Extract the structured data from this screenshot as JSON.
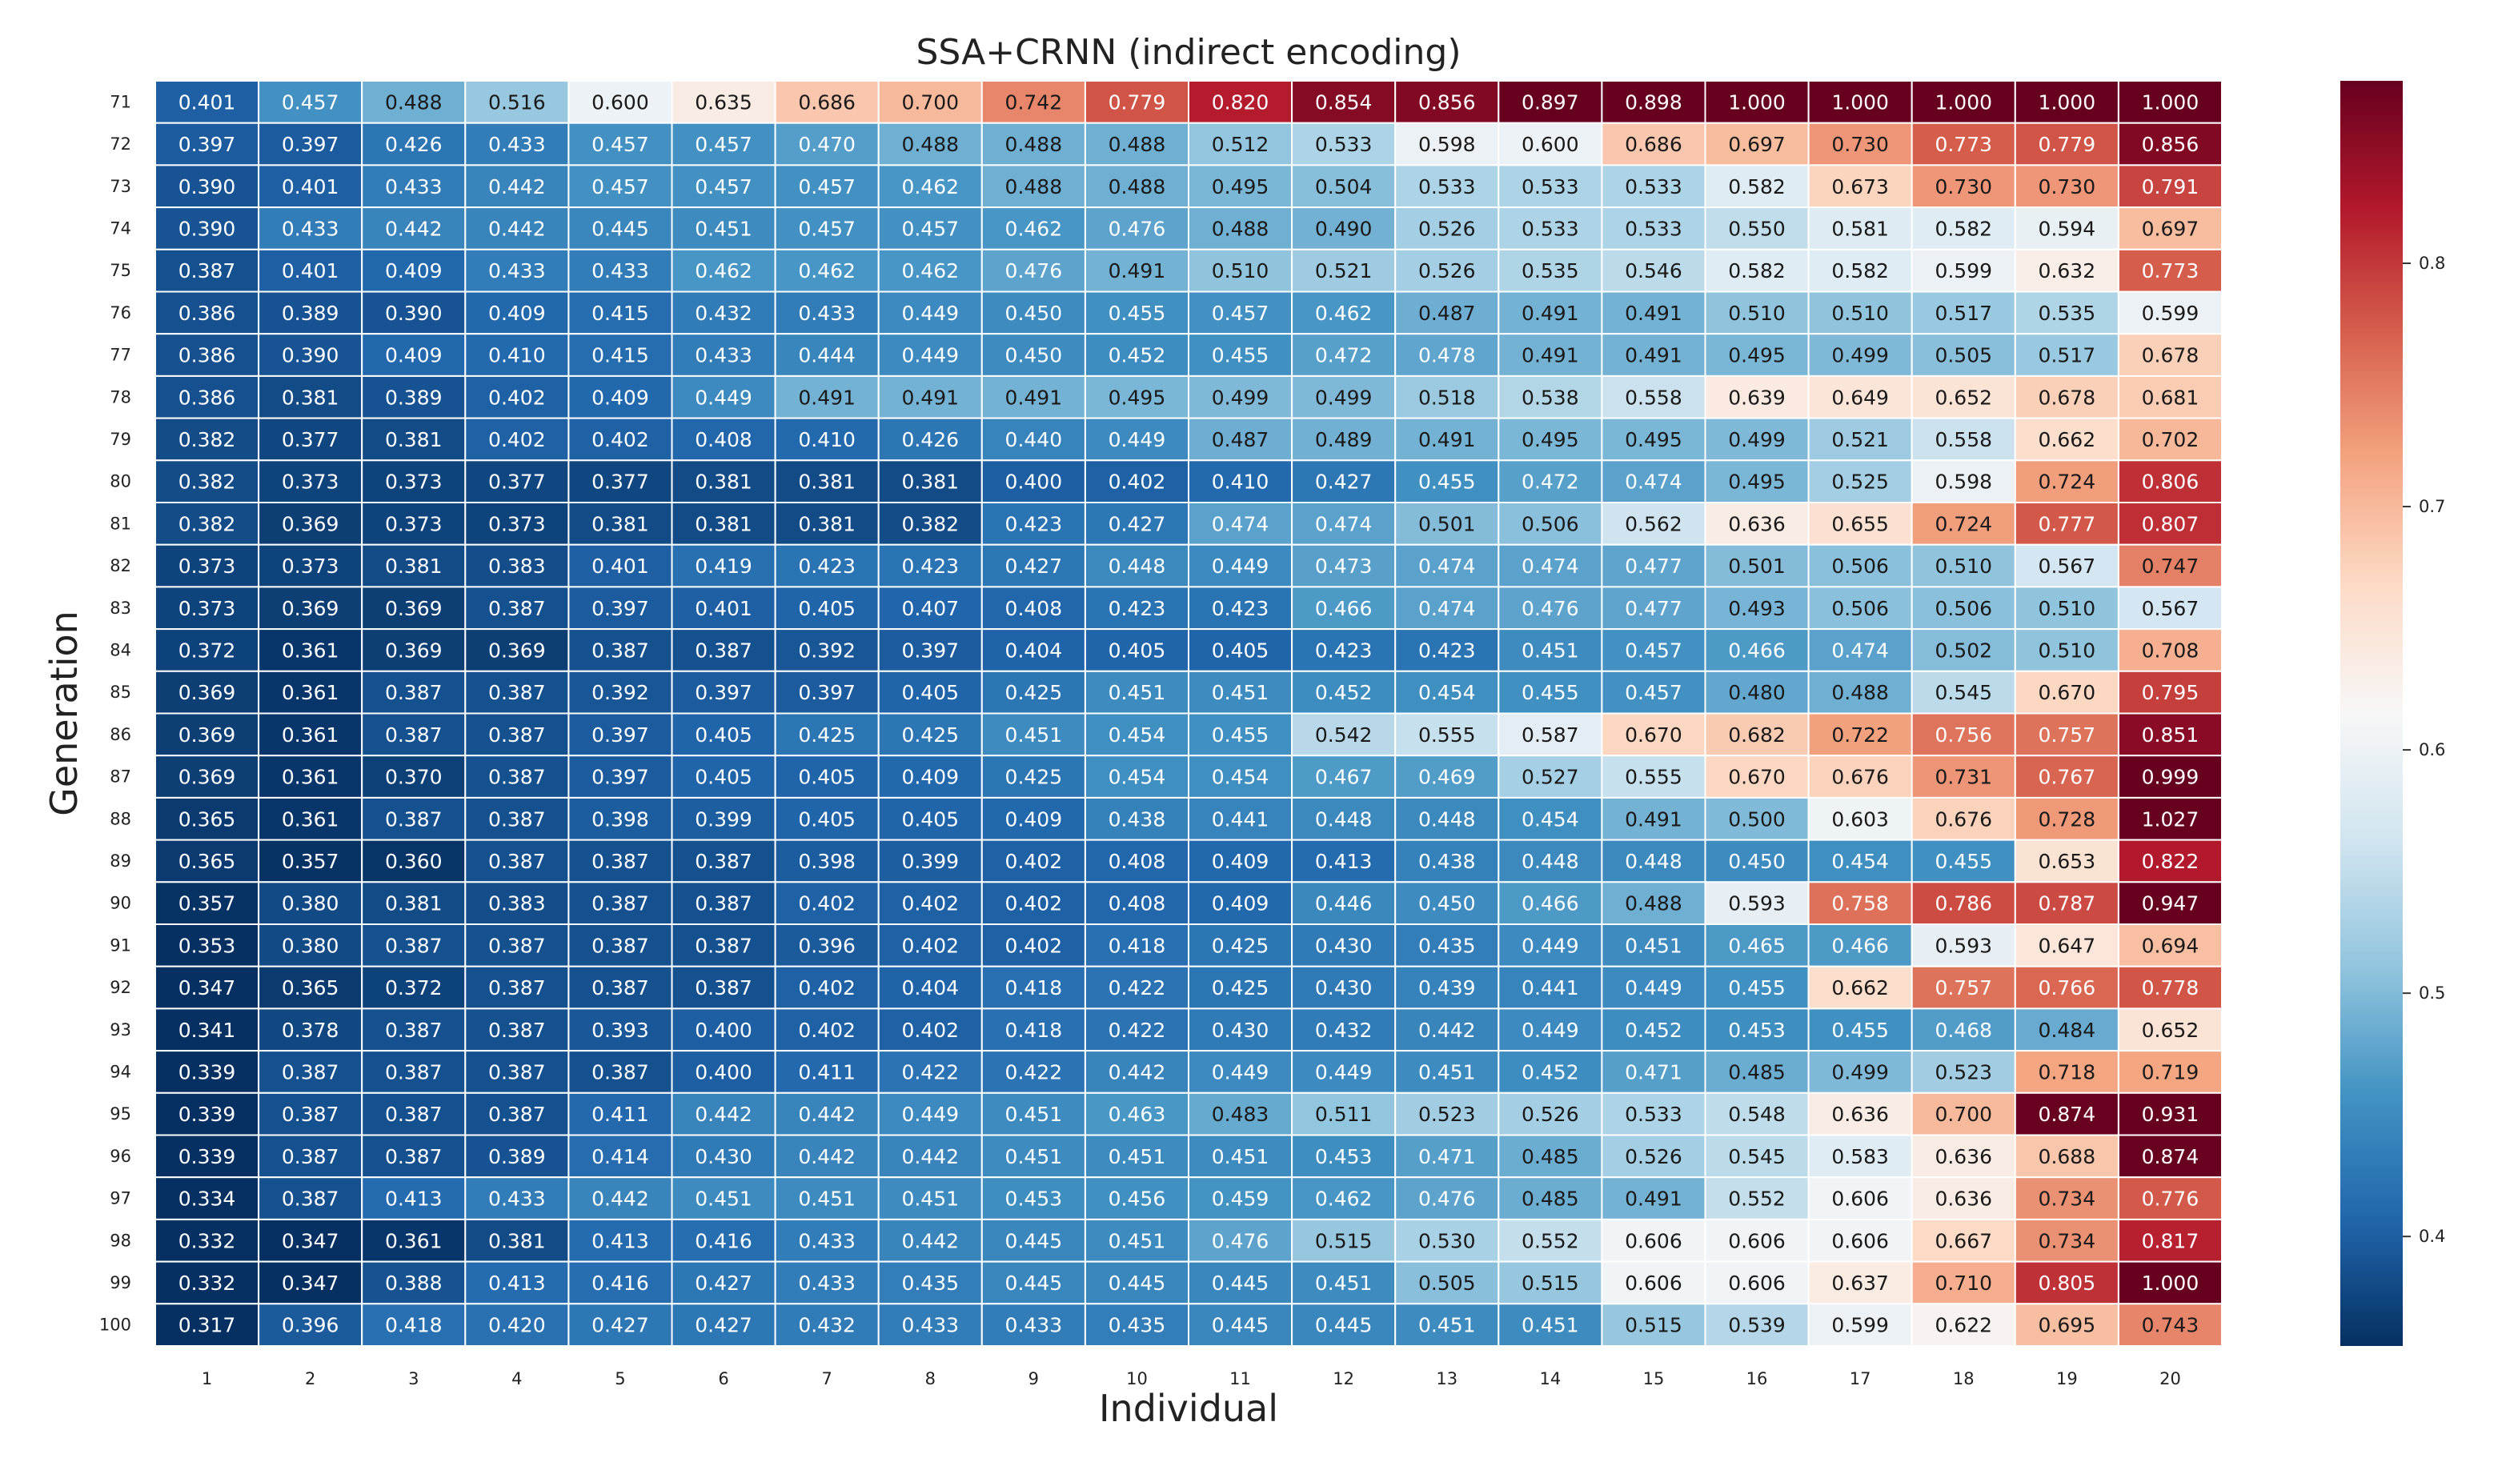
{
  "chart_data": {
    "type": "heatmap",
    "title": "SSA+CRNN (indirect encoding)",
    "xlabel": "Individual",
    "ylabel": "Generation",
    "x_categories": [
      "1",
      "2",
      "3",
      "4",
      "5",
      "6",
      "7",
      "8",
      "9",
      "10",
      "11",
      "12",
      "13",
      "14",
      "15",
      "16",
      "17",
      "18",
      "19",
      "20"
    ],
    "y_categories": [
      "71",
      "72",
      "73",
      "74",
      "75",
      "76",
      "77",
      "78",
      "79",
      "80",
      "81",
      "82",
      "83",
      "84",
      "85",
      "86",
      "87",
      "88",
      "89",
      "90",
      "91",
      "92",
      "93",
      "94",
      "95",
      "96",
      "97",
      "98",
      "99",
      "100"
    ],
    "value_labels": [
      [
        "0.401",
        "0.457",
        "0.488",
        "0.516",
        "0.600",
        "0.635",
        "0.686",
        "0.700",
        "0.742",
        "0.779",
        "0.820",
        "0.854",
        "0.856",
        "0.897",
        "0.898",
        "1.000",
        "1.000",
        "1.000",
        "1.000",
        "1.000"
      ],
      [
        "0.397",
        "0.397",
        "0.426",
        "0.433",
        "0.457",
        "0.457",
        "0.470",
        "0.488",
        "0.488",
        "0.488",
        "0.512",
        "0.533",
        "0.598",
        "0.600",
        "0.686",
        "0.697",
        "0.730",
        "0.773",
        "0.779",
        "0.856"
      ],
      [
        "0.390",
        "0.401",
        "0.433",
        "0.442",
        "0.457",
        "0.457",
        "0.457",
        "0.462",
        "0.488",
        "0.488",
        "0.495",
        "0.504",
        "0.533",
        "0.533",
        "0.533",
        "0.582",
        "0.673",
        "0.730",
        "0.730",
        "0.791"
      ],
      [
        "0.390",
        "0.433",
        "0.442",
        "0.442",
        "0.445",
        "0.451",
        "0.457",
        "0.457",
        "0.462",
        "0.476",
        "0.488",
        "0.490",
        "0.526",
        "0.533",
        "0.533",
        "0.550",
        "0.581",
        "0.582",
        "0.594",
        "0.697"
      ],
      [
        "0.387",
        "0.401",
        "0.409",
        "0.433",
        "0.433",
        "0.462",
        "0.462",
        "0.462",
        "0.476",
        "0.491",
        "0.510",
        "0.521",
        "0.526",
        "0.535",
        "0.546",
        "0.582",
        "0.582",
        "0.599",
        "0.632",
        "0.773"
      ],
      [
        "0.386",
        "0.389",
        "0.390",
        "0.409",
        "0.415",
        "0.432",
        "0.433",
        "0.449",
        "0.450",
        "0.455",
        "0.457",
        "0.462",
        "0.487",
        "0.491",
        "0.491",
        "0.510",
        "0.510",
        "0.517",
        "0.535",
        "0.599"
      ],
      [
        "0.386",
        "0.390",
        "0.409",
        "0.410",
        "0.415",
        "0.433",
        "0.444",
        "0.449",
        "0.450",
        "0.452",
        "0.455",
        "0.472",
        "0.478",
        "0.491",
        "0.491",
        "0.495",
        "0.499",
        "0.505",
        "0.517",
        "0.678"
      ],
      [
        "0.386",
        "0.381",
        "0.389",
        "0.402",
        "0.409",
        "0.449",
        "0.491",
        "0.491",
        "0.491",
        "0.495",
        "0.499",
        "0.499",
        "0.518",
        "0.538",
        "0.558",
        "0.639",
        "0.649",
        "0.652",
        "0.678",
        "0.681"
      ],
      [
        "0.382",
        "0.377",
        "0.381",
        "0.402",
        "0.402",
        "0.408",
        "0.410",
        "0.426",
        "0.440",
        "0.449",
        "0.487",
        "0.489",
        "0.491",
        "0.495",
        "0.495",
        "0.499",
        "0.521",
        "0.558",
        "0.662",
        "0.702"
      ],
      [
        "0.382",
        "0.373",
        "0.373",
        "0.377",
        "0.377",
        "0.381",
        "0.381",
        "0.381",
        "0.400",
        "0.402",
        "0.410",
        "0.427",
        "0.455",
        "0.472",
        "0.474",
        "0.495",
        "0.525",
        "0.598",
        "0.724",
        "0.806"
      ],
      [
        "0.382",
        "0.369",
        "0.373",
        "0.373",
        "0.381",
        "0.381",
        "0.381",
        "0.382",
        "0.423",
        "0.427",
        "0.474",
        "0.474",
        "0.501",
        "0.506",
        "0.562",
        "0.636",
        "0.655",
        "0.724",
        "0.777",
        "0.807"
      ],
      [
        "0.373",
        "0.373",
        "0.381",
        "0.383",
        "0.401",
        "0.419",
        "0.423",
        "0.423",
        "0.427",
        "0.448",
        "0.449",
        "0.473",
        "0.474",
        "0.474",
        "0.477",
        "0.501",
        "0.506",
        "0.510",
        "0.567",
        "0.747"
      ],
      [
        "0.373",
        "0.369",
        "0.369",
        "0.387",
        "0.397",
        "0.401",
        "0.405",
        "0.407",
        "0.408",
        "0.423",
        "0.423",
        "0.466",
        "0.474",
        "0.476",
        "0.477",
        "0.493",
        "0.506",
        "0.506",
        "0.510",
        "0.567"
      ],
      [
        "0.372",
        "0.361",
        "0.369",
        "0.369",
        "0.387",
        "0.387",
        "0.392",
        "0.397",
        "0.404",
        "0.405",
        "0.405",
        "0.423",
        "0.423",
        "0.451",
        "0.457",
        "0.466",
        "0.474",
        "0.502",
        "0.510",
        "0.708"
      ],
      [
        "0.369",
        "0.361",
        "0.387",
        "0.387",
        "0.392",
        "0.397",
        "0.397",
        "0.405",
        "0.425",
        "0.451",
        "0.451",
        "0.452",
        "0.454",
        "0.455",
        "0.457",
        "0.480",
        "0.488",
        "0.545",
        "0.670",
        "0.795"
      ],
      [
        "0.369",
        "0.361",
        "0.387",
        "0.387",
        "0.397",
        "0.405",
        "0.425",
        "0.425",
        "0.451",
        "0.454",
        "0.455",
        "0.542",
        "0.555",
        "0.587",
        "0.670",
        "0.682",
        "0.722",
        "0.756",
        "0.757",
        "0.851"
      ],
      [
        "0.369",
        "0.361",
        "0.370",
        "0.387",
        "0.397",
        "0.405",
        "0.405",
        "0.409",
        "0.425",
        "0.454",
        "0.454",
        "0.467",
        "0.469",
        "0.527",
        "0.555",
        "0.670",
        "0.676",
        "0.731",
        "0.767",
        "0.999"
      ],
      [
        "0.365",
        "0.361",
        "0.387",
        "0.387",
        "0.398",
        "0.399",
        "0.405",
        "0.405",
        "0.409",
        "0.438",
        "0.441",
        "0.448",
        "0.448",
        "0.454",
        "0.491",
        "0.500",
        "0.603",
        "0.676",
        "0.728",
        "1.027"
      ],
      [
        "0.365",
        "0.357",
        "0.360",
        "0.387",
        "0.387",
        "0.387",
        "0.398",
        "0.399",
        "0.402",
        "0.408",
        "0.409",
        "0.413",
        "0.438",
        "0.448",
        "0.448",
        "0.450",
        "0.454",
        "0.455",
        "0.653",
        "0.822"
      ],
      [
        "0.357",
        "0.380",
        "0.381",
        "0.383",
        "0.387",
        "0.387",
        "0.402",
        "0.402",
        "0.402",
        "0.408",
        "0.409",
        "0.446",
        "0.450",
        "0.466",
        "0.488",
        "0.593",
        "0.758",
        "0.786",
        "0.787",
        "0.947"
      ],
      [
        "0.353",
        "0.380",
        "0.387",
        "0.387",
        "0.387",
        "0.387",
        "0.396",
        "0.402",
        "0.402",
        "0.418",
        "0.425",
        "0.430",
        "0.435",
        "0.449",
        "0.451",
        "0.465",
        "0.466",
        "0.593",
        "0.647",
        "0.694"
      ],
      [
        "0.347",
        "0.365",
        "0.372",
        "0.387",
        "0.387",
        "0.387",
        "0.402",
        "0.404",
        "0.418",
        "0.422",
        "0.425",
        "0.430",
        "0.439",
        "0.441",
        "0.449",
        "0.455",
        "0.662",
        "0.757",
        "0.766",
        "0.778"
      ],
      [
        "0.341",
        "0.378",
        "0.387",
        "0.387",
        "0.393",
        "0.400",
        "0.402",
        "0.402",
        "0.418",
        "0.422",
        "0.430",
        "0.432",
        "0.442",
        "0.449",
        "0.452",
        "0.453",
        "0.455",
        "0.468",
        "0.484",
        "0.652"
      ],
      [
        "0.339",
        "0.387",
        "0.387",
        "0.387",
        "0.387",
        "0.400",
        "0.411",
        "0.422",
        "0.422",
        "0.442",
        "0.449",
        "0.449",
        "0.451",
        "0.452",
        "0.471",
        "0.485",
        "0.499",
        "0.523",
        "0.718",
        "0.719"
      ],
      [
        "0.339",
        "0.387",
        "0.387",
        "0.387",
        "0.411",
        "0.442",
        "0.442",
        "0.449",
        "0.451",
        "0.463",
        "0.483",
        "0.511",
        "0.523",
        "0.526",
        "0.533",
        "0.548",
        "0.636",
        "0.700",
        "0.874",
        "0.931"
      ],
      [
        "0.339",
        "0.387",
        "0.387",
        "0.389",
        "0.414",
        "0.430",
        "0.442",
        "0.442",
        "0.451",
        "0.451",
        "0.451",
        "0.453",
        "0.471",
        "0.485",
        "0.526",
        "0.545",
        "0.583",
        "0.636",
        "0.688",
        "0.874"
      ],
      [
        "0.334",
        "0.387",
        "0.413",
        "0.433",
        "0.442",
        "0.451",
        "0.451",
        "0.451",
        "0.453",
        "0.456",
        "0.459",
        "0.462",
        "0.476",
        "0.485",
        "0.491",
        "0.552",
        "0.606",
        "0.636",
        "0.734",
        "0.776"
      ],
      [
        "0.332",
        "0.347",
        "0.361",
        "0.381",
        "0.413",
        "0.416",
        "0.433",
        "0.442",
        "0.445",
        "0.451",
        "0.476",
        "0.515",
        "0.530",
        "0.552",
        "0.606",
        "0.606",
        "0.606",
        "0.667",
        "0.734",
        "0.817"
      ],
      [
        "0.332",
        "0.347",
        "0.388",
        "0.413",
        "0.416",
        "0.427",
        "0.433",
        "0.435",
        "0.445",
        "0.445",
        "0.445",
        "0.451",
        "0.505",
        "0.515",
        "0.606",
        "0.606",
        "0.637",
        "0.710",
        "0.805",
        "1.000"
      ],
      [
        "0.317",
        "0.396",
        "0.418",
        "0.420",
        "0.427",
        "0.427",
        "0.432",
        "0.433",
        "0.433",
        "0.435",
        "0.445",
        "0.445",
        "0.451",
        "0.451",
        "0.515",
        "0.539",
        "0.599",
        "0.622",
        "0.695",
        "0.743"
      ]
    ],
    "colorbar": {
      "vmin": 0.355,
      "vmax": 0.875,
      "ticks": [
        0.4,
        0.5,
        0.6,
        0.7,
        0.8
      ],
      "tick_labels": [
        "0.4",
        "0.5",
        "0.6",
        "0.7",
        "0.8"
      ],
      "colormap": "RdBu_r",
      "stops": [
        "#053061",
        "#2166ac",
        "#4393c3",
        "#92c5de",
        "#d1e5f0",
        "#f7f7f7",
        "#fddbc7",
        "#f4a582",
        "#d6604d",
        "#b2182b",
        "#67001f"
      ]
    },
    "colors": {
      "text_dark": "#1a1a1a",
      "text_light": "#ffffff",
      "cell_border": "#ffffff"
    }
  }
}
